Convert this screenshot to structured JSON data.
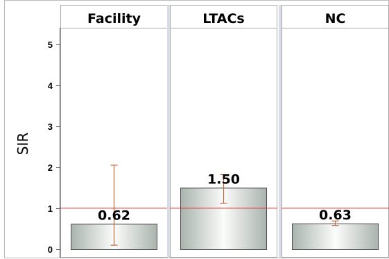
{
  "chart_data": {
    "type": "bar",
    "categories": [
      "Facility",
      "LTACs",
      "NC"
    ],
    "values": [
      0.62,
      1.5,
      0.63
    ],
    "data_labels": [
      "0.62",
      "1.50",
      "0.63"
    ],
    "error_bars": [
      {
        "low": 0.1,
        "high": 2.05
      },
      {
        "low": 1.12,
        "high": 1.82
      },
      {
        "low": 0.58,
        "high": 0.69
      }
    ],
    "reference_line": 1,
    "title": "",
    "xlabel": "",
    "ylabel": "SIR",
    "ylim": [
      0,
      5.4
    ],
    "yticks": [
      "0",
      "1",
      "2",
      "3",
      "4",
      "5"
    ],
    "grid": false,
    "layout": "panels-by-category",
    "colors": {
      "bar_light": "#fbfcfb",
      "bar_dark": "#aab4ad",
      "bar_stroke": "#4a4a4a",
      "error_bar": "#c0663a",
      "reference_line": "#e03030",
      "panel_border": "#a8a8a8",
      "panel_gap": "#d8dce6"
    }
  }
}
